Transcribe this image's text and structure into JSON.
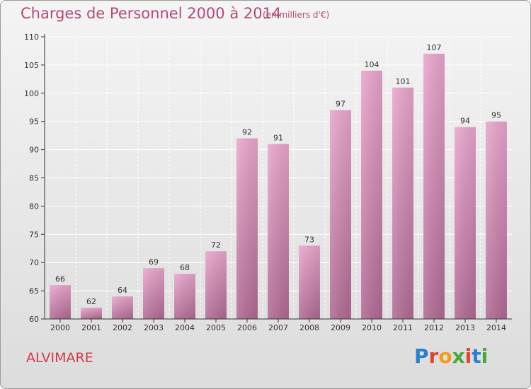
{
  "header": {
    "title": "Charges de Personnel 2000 à 2014",
    "subtitle": "(en milliers d'€)"
  },
  "footer": {
    "commune": "ALVIMARE",
    "logo": "Proxiti"
  },
  "colors": {
    "bar_top": "#e8a6cc",
    "bar_bottom": "#b06a93",
    "title": "#b44a78",
    "commune": "#d13a4a"
  },
  "chart_data": {
    "type": "bar",
    "title": "Charges de Personnel 2000 à 2014",
    "subtitle": "(en milliers d'€)",
    "categories": [
      "2000",
      "2001",
      "2002",
      "2003",
      "2004",
      "2005",
      "2006",
      "2007",
      "2008",
      "2009",
      "2010",
      "2011",
      "2012",
      "2013",
      "2014"
    ],
    "values": [
      66,
      62,
      64,
      69,
      68,
      72,
      92,
      91,
      73,
      97,
      104,
      101,
      107,
      94,
      95
    ],
    "ylim": [
      60,
      110
    ],
    "yticks": [
      60,
      65,
      70,
      75,
      80,
      85,
      90,
      95,
      100,
      105,
      110
    ],
    "grid": true,
    "legend": false
  }
}
